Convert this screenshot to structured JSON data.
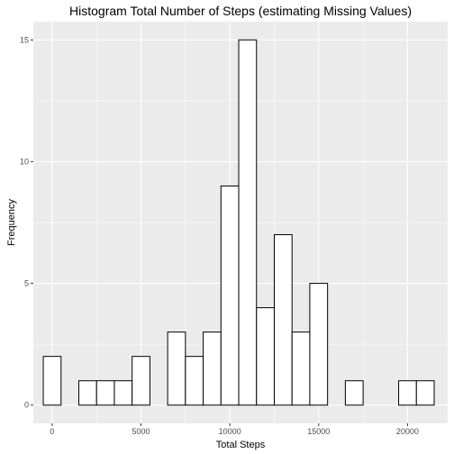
{
  "chart_data": {
    "type": "bar",
    "title": "Histogram Total Number of Steps (estimating Missing Values)",
    "xlabel": "Total Steps",
    "ylabel": "Frequency",
    "x_ticks": [
      0,
      5000,
      10000,
      15000,
      20000
    ],
    "y_ticks": [
      0,
      5,
      10,
      15
    ],
    "xlim": [
      -1060,
      22260
    ],
    "ylim": [
      -0.75,
      15.75
    ],
    "binwidth": 1000,
    "bins": [
      {
        "center": 0,
        "count": 2
      },
      {
        "center": 1000,
        "count": 0
      },
      {
        "center": 2000,
        "count": 1
      },
      {
        "center": 3000,
        "count": 1
      },
      {
        "center": 4000,
        "count": 1
      },
      {
        "center": 5000,
        "count": 2
      },
      {
        "center": 6000,
        "count": 0
      },
      {
        "center": 7000,
        "count": 3
      },
      {
        "center": 8000,
        "count": 2
      },
      {
        "center": 9000,
        "count": 3
      },
      {
        "center": 10000,
        "count": 9
      },
      {
        "center": 11000,
        "count": 15
      },
      {
        "center": 12000,
        "count": 4
      },
      {
        "center": 13000,
        "count": 7
      },
      {
        "center": 14000,
        "count": 3
      },
      {
        "center": 15000,
        "count": 5
      },
      {
        "center": 16000,
        "count": 0
      },
      {
        "center": 17000,
        "count": 1
      },
      {
        "center": 18000,
        "count": 0
      },
      {
        "center": 19000,
        "count": 0
      },
      {
        "center": 20000,
        "count": 1
      },
      {
        "center": 21000,
        "count": 1
      }
    ],
    "grid": true,
    "colors": {
      "panel_background": "#ebebeb",
      "grid_major": "#ffffff",
      "bar_fill": "#ffffff",
      "bar_outline": "#000000"
    }
  }
}
